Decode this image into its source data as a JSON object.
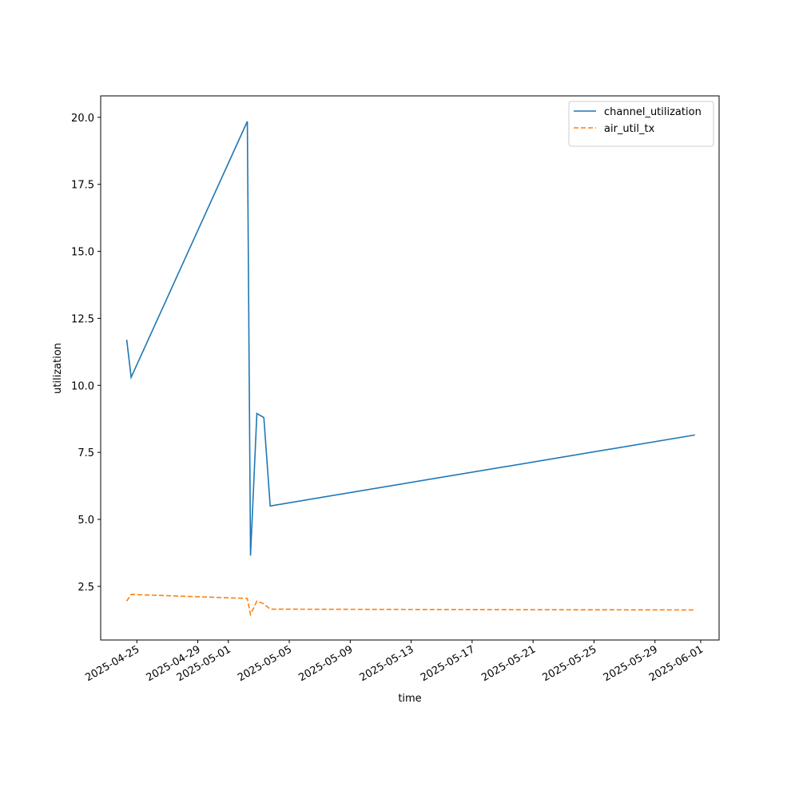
{
  "chart_data": {
    "type": "line",
    "x_label": "time",
    "y_label": "utilization",
    "x": [
      "2025-04-24T08:00",
      "2025-04-24T15:00",
      "2025-05-02T06:00",
      "2025-05-02T11:00",
      "2025-05-02T21:00",
      "2025-05-03T08:00",
      "2025-05-03T18:00",
      "2025-05-31T15:00"
    ],
    "series": [
      {
        "name": "channel_utilization",
        "color": "#1f77b4",
        "dash": "solid",
        "values": [
          11.7,
          10.3,
          19.85,
          3.65,
          8.95,
          8.8,
          5.5,
          8.15
        ]
      },
      {
        "name": "air_util_tx",
        "color": "#ff7f0e",
        "dash": "dashed",
        "values": [
          1.95,
          2.2,
          2.05,
          1.45,
          1.95,
          1.85,
          1.65,
          1.62
        ]
      }
    ],
    "xlim": [
      "2025-04-22T15:00",
      "2025-06-02T05:00"
    ],
    "xticks": [
      "2025-04-25",
      "2025-04-29",
      "2025-05-01",
      "2025-05-05",
      "2025-05-09",
      "2025-05-13",
      "2025-05-17",
      "2025-05-21",
      "2025-05-25",
      "2025-05-29",
      "2025-06-01"
    ],
    "ylim": [
      0.5,
      20.8
    ],
    "yticks": [
      2.5,
      {
        "value": 5,
        "label": "5.0"
      },
      7.5,
      {
        "value": 10,
        "label": "10.0"
      },
      12.5,
      {
        "value": 15,
        "label": "15.0"
      },
      17.5,
      {
        "value": 20,
        "label": "20.0"
      }
    ],
    "grid": false,
    "legend": "upper right"
  }
}
